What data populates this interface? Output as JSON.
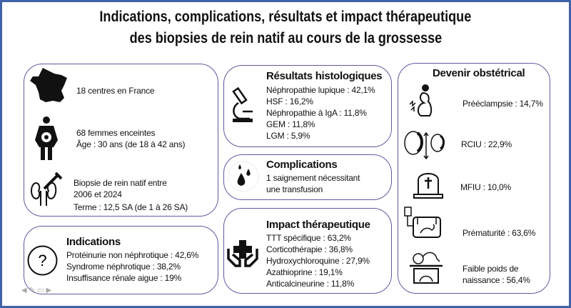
{
  "title": {
    "line1": "Indications, complications, résultats et impact thérapeutique",
    "line2": "des biopsies de rein natif au cours de la grossesse"
  },
  "population": {
    "centres": "18 centres en France",
    "women": "68 femmes enceintes",
    "age": "Âge : 30 ans (de 18 à 42 ans)",
    "biopsy_line1": "Biopsie de rein natif entre",
    "biopsy_line2": "2006 et 2024",
    "term": "Terme : 12,5 SA (de 1 à 26 SA)"
  },
  "indications": {
    "heading": "Indications",
    "items": [
      "Protéinurie non néphrotique : 42,6%",
      "Syndrome néphrotique : 38,2%",
      "Insuffisance rénale aigue : 19%"
    ]
  },
  "histology": {
    "heading": "Résultats histologiques",
    "items": [
      "Néphropathie lupique : 42,1%",
      "HSF : 16,2%",
      "Néphropathie à IgA : 11,8%",
      "GEM : 11,8%",
      "LGM : 5,9%"
    ]
  },
  "complications": {
    "heading": "Complications",
    "line1": "1 saignement nécessitant",
    "line2": "une transfusion"
  },
  "therapeutic": {
    "heading": "Impact thérapeutique",
    "items": [
      "TTT spécifique : 63,2%",
      "Corticothérapie : 36,8%",
      "Hydroxychloroquine : 27,9%",
      "Azathioprine : 19,1%",
      "Anticalcineurine : 11,8%"
    ]
  },
  "obstetric": {
    "heading": "Devenir obstétrical",
    "preeclampsia": "Prééclampsie : 14,7%",
    "rciu": "RCIU : 22,9%",
    "mfiu": "MFIU : 10,0%",
    "prematurity": "Prématurité : 63,6%",
    "lbw_line1": "Faible poids de",
    "lbw_line2": "naissance : 56,4%"
  },
  "colors": {
    "frame": "#3f63a8",
    "box_border": "#5d5ba3"
  }
}
